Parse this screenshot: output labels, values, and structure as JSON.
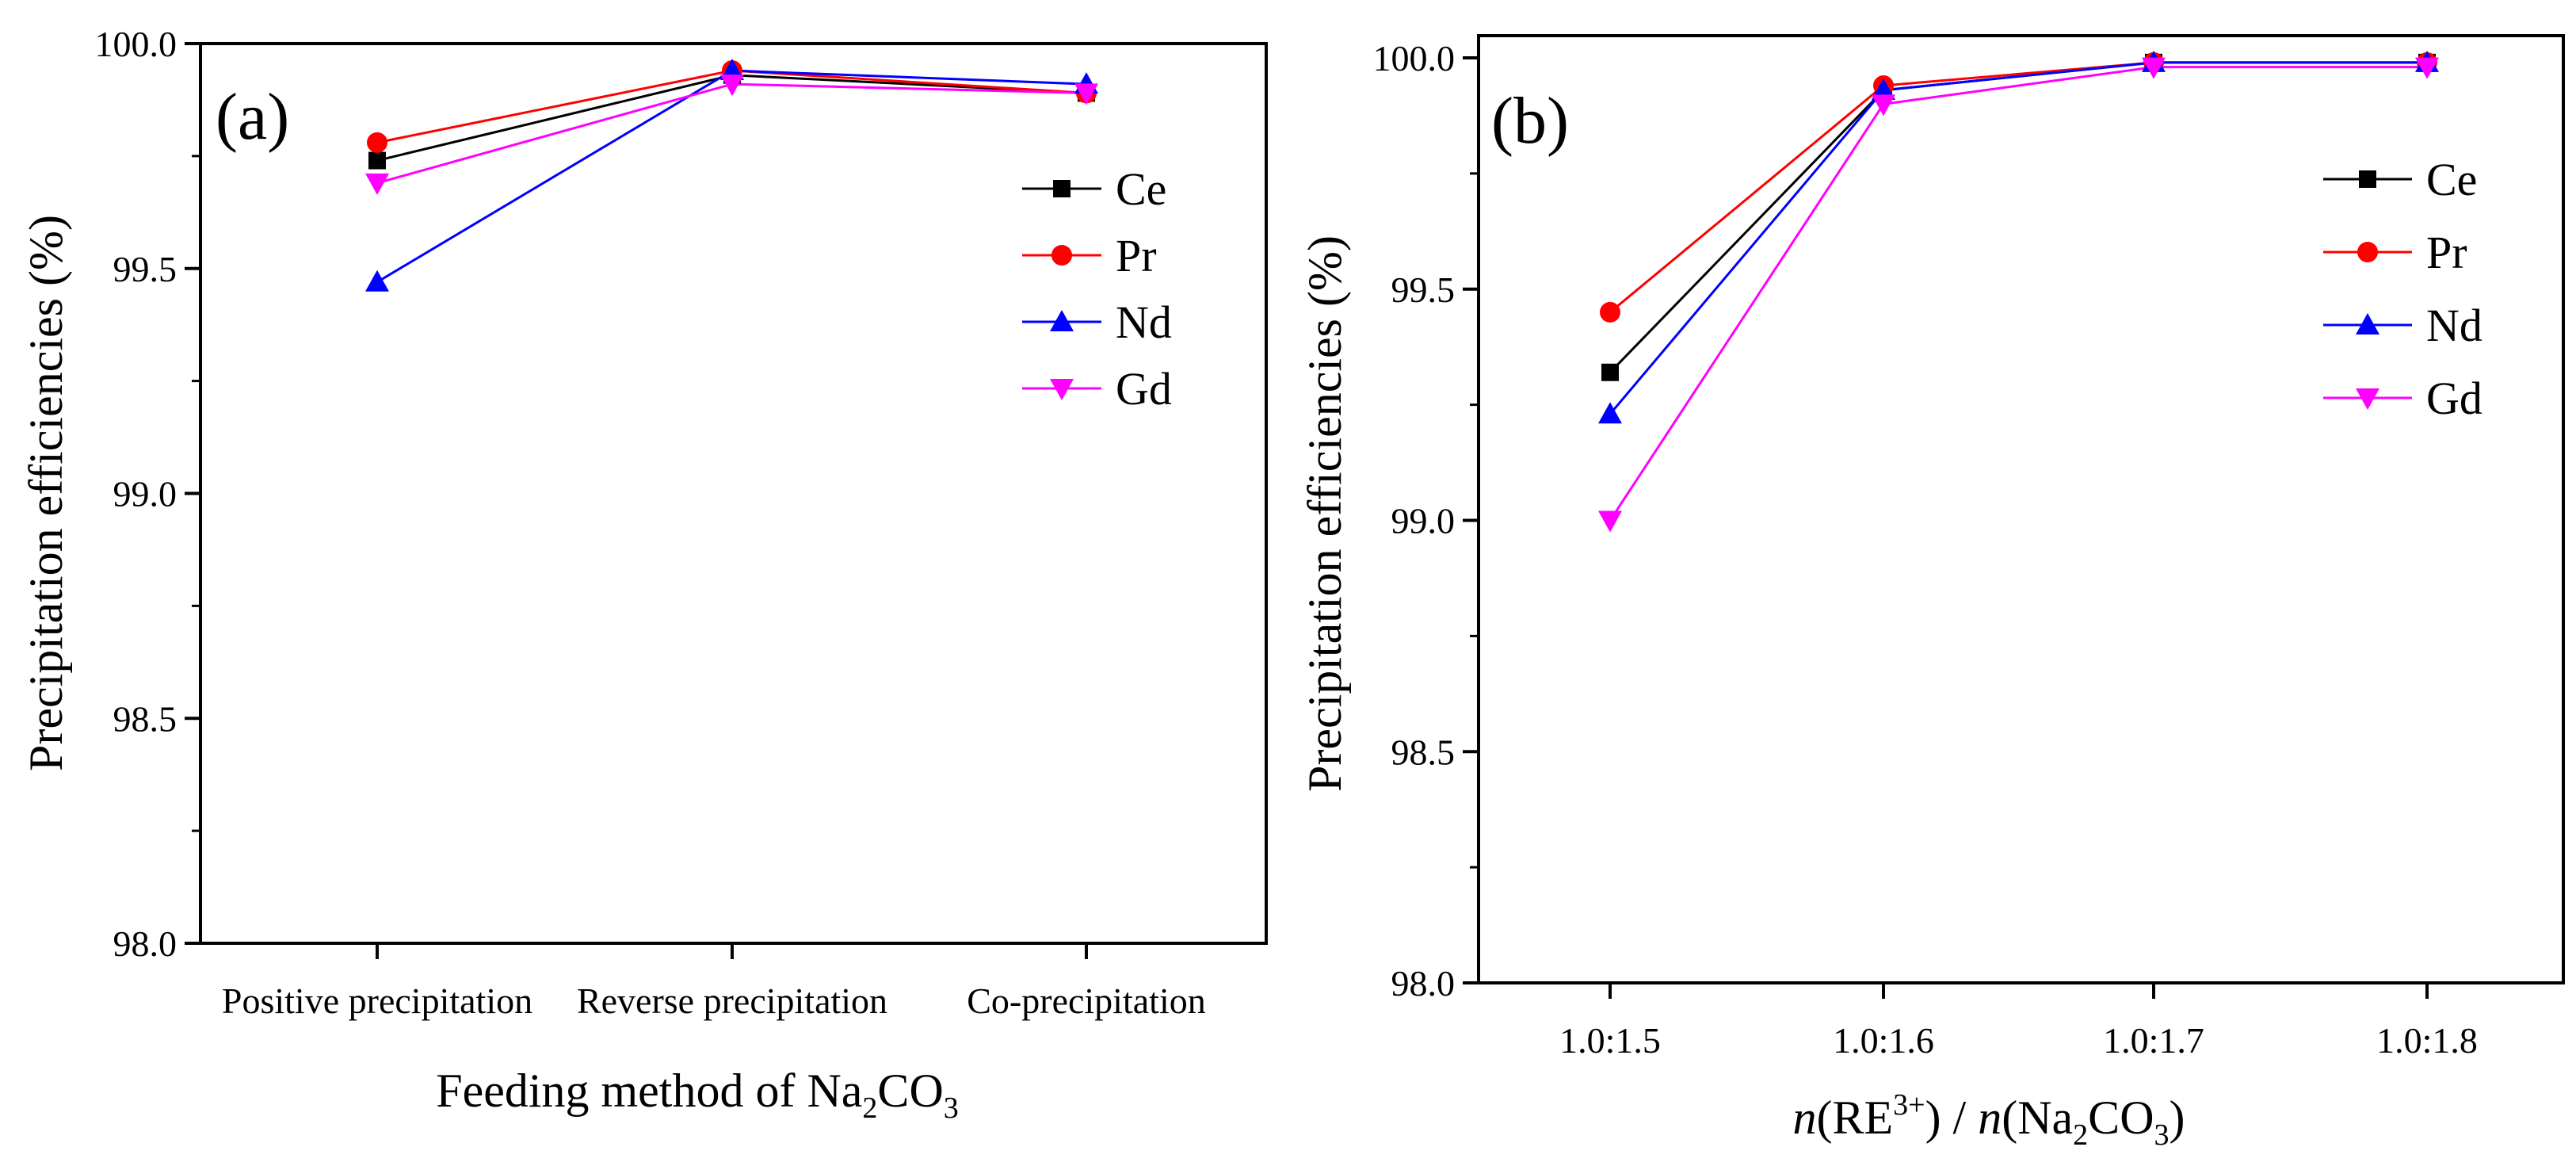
{
  "chart_data": [
    {
      "type": "line",
      "panel_label": "(a)",
      "categories": [
        "Positive precipitation",
        "Reverse precipitation",
        "Co-precipitation"
      ],
      "series": [
        {
          "name": "Ce",
          "values": [
            99.74,
            99.93,
            99.89
          ],
          "color": "#000000",
          "marker": "square"
        },
        {
          "name": "Pr",
          "values": [
            99.78,
            99.94,
            99.89
          ],
          "color": "#ff0000",
          "marker": "circle"
        },
        {
          "name": "Nd",
          "values": [
            99.47,
            99.94,
            99.91
          ],
          "color": "#0000ff",
          "marker": "triangle-up"
        },
        {
          "name": "Gd",
          "values": [
            99.69,
            99.91,
            99.89
          ],
          "color": "#ff00ff",
          "marker": "triangle-down"
        }
      ],
      "ylabel": "Precipitation efficiencies (%)",
      "xlabel": {
        "main": "Feeding method of Na",
        "sub1": "2",
        "mid": "CO",
        "sub2": "3"
      },
      "ylim": [
        98.0,
        100.0
      ],
      "yticks": [
        "98.0",
        "98.5",
        "99.0",
        "99.5",
        "100.0"
      ],
      "legend_position": "upper-right"
    },
    {
      "type": "line",
      "panel_label": "(b)",
      "categories": [
        "1.0:1.5",
        "1.0:1.6",
        "1.0:1.7",
        "1.0:1.8"
      ],
      "series": [
        {
          "name": "Ce",
          "values": [
            99.32,
            99.93,
            99.99,
            99.99
          ],
          "color": "#000000",
          "marker": "square"
        },
        {
          "name": "Pr",
          "values": [
            99.45,
            99.94,
            99.99,
            99.99
          ],
          "color": "#ff0000",
          "marker": "circle"
        },
        {
          "name": "Nd",
          "values": [
            99.23,
            99.93,
            99.99,
            99.99
          ],
          "color": "#0000ff",
          "marker": "triangle-up"
        },
        {
          "name": "Gd",
          "values": [
            99.0,
            99.9,
            99.98,
            99.98
          ],
          "color": "#ff00ff",
          "marker": "triangle-down"
        }
      ],
      "ylabel": "Precipitation efficiencies  (%)",
      "xlabel": {
        "n1": "n",
        "p1": "(RE",
        "sup": "3+",
        "p2": ") / ",
        "n2": "n",
        "p3": "(Na",
        "sub1": "2",
        "p4": "CO",
        "sub2": "3",
        "p5": ")"
      },
      "ylim": [
        98.0,
        100.0
      ],
      "yticks": [
        "98.0",
        "98.5",
        "99.0",
        "99.5",
        "100.0"
      ],
      "legend_position": "upper-right"
    }
  ]
}
